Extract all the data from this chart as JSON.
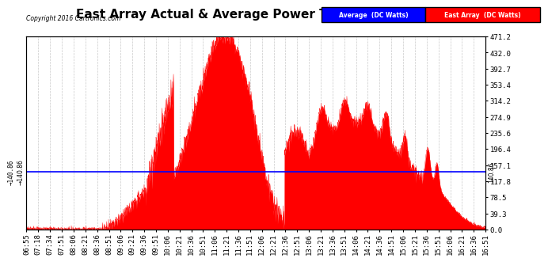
{
  "title": "East Array Actual & Average Power Tue Feb 16 17:05",
  "copyright": "Copyright 2016 Cartronics.com",
  "average_value": 140.86,
  "y_max": 471.2,
  "y_min": 0.0,
  "y_ticks": [
    0.0,
    39.3,
    78.5,
    117.8,
    157.1,
    196.4,
    235.6,
    274.9,
    314.2,
    353.4,
    392.7,
    432.0,
    471.2
  ],
  "legend_avg_label": "Average  (DC Watts)",
  "legend_east_label": "East Array  (DC Watts)",
  "avg_line_color": "#0000ff",
  "east_fill_color": "#ff0000",
  "background_color": "#ffffff",
  "grid_color": "#bbbbbb",
  "title_fontsize": 11,
  "tick_fontsize": 6.5,
  "x_tick_labels": [
    "06:55",
    "07:18",
    "07:34",
    "07:51",
    "08:06",
    "08:21",
    "08:36",
    "08:51",
    "09:06",
    "09:21",
    "09:36",
    "09:51",
    "10:06",
    "10:21",
    "10:36",
    "10:51",
    "11:06",
    "11:21",
    "11:36",
    "11:51",
    "12:06",
    "12:21",
    "12:36",
    "12:51",
    "13:06",
    "13:21",
    "13:36",
    "13:51",
    "14:06",
    "14:21",
    "14:36",
    "14:51",
    "15:06",
    "15:21",
    "15:36",
    "15:51",
    "16:06",
    "16:21",
    "16:36",
    "16:51"
  ]
}
